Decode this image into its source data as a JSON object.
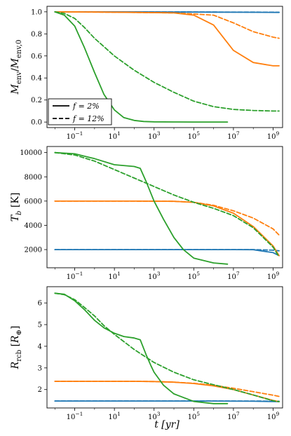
{
  "figure": {
    "xlabel": "t [yr]",
    "legend": {
      "entries": [
        {
          "label": "f = 2%",
          "style": "solid"
        },
        {
          "label": "f = 12%",
          "style": "dashed"
        }
      ],
      "placement": "lower-left of top panel"
    },
    "colors": {
      "blue": "#1f77b4",
      "orange": "#ff7f0e",
      "green": "#2ca02c"
    }
  },
  "chart_data": [
    {
      "type": "line",
      "ylabel": "M_env/M_env,0",
      "xscale": "log",
      "xlim": [
        0.004,
        3000000000
      ],
      "ylim": [
        -0.05,
        1.05
      ],
      "xticks": [
        "10^-1",
        "10^1",
        "10^3",
        "10^5",
        "10^7",
        "10^9"
      ],
      "yticks": [
        "0.0",
        "0.2",
        "0.4",
        "0.6",
        "0.8",
        "1.0"
      ],
      "series": [
        {
          "color": "blue",
          "style": "solid",
          "x": [
            0.01,
            1,
            100,
            10000,
            1000000,
            100000000,
            2000000000
          ],
          "y": [
            1.0,
            1.0,
            1.0,
            0.998,
            0.997,
            0.996,
            0.995
          ]
        },
        {
          "color": "blue",
          "style": "dashed",
          "x": [
            0.01,
            1,
            100,
            10000,
            1000000,
            100000000,
            2000000000
          ],
          "y": [
            1.0,
            1.0,
            1.0,
            0.999,
            0.998,
            0.997,
            0.996
          ]
        },
        {
          "color": "orange",
          "style": "solid",
          "x": [
            0.01,
            1,
            100,
            10000,
            100000,
            1000000,
            10000000,
            100000000,
            1000000000,
            2000000000
          ],
          "y": [
            1.0,
            0.998,
            0.995,
            0.99,
            0.97,
            0.88,
            0.65,
            0.54,
            0.51,
            0.51
          ]
        },
        {
          "color": "orange",
          "style": "dashed",
          "x": [
            0.01,
            1,
            100,
            10000,
            1000000,
            10000000,
            100000000,
            1000000000,
            2000000000
          ],
          "y": [
            1.0,
            0.998,
            0.995,
            0.99,
            0.97,
            0.9,
            0.82,
            0.77,
            0.76
          ]
        },
        {
          "color": "green",
          "style": "solid",
          "x": [
            0.01,
            0.03,
            0.1,
            0.3,
            1,
            3,
            10,
            30,
            100,
            300,
            1000,
            10000,
            100000,
            5000000
          ],
          "y": [
            1.0,
            0.97,
            0.87,
            0.68,
            0.45,
            0.25,
            0.11,
            0.04,
            0.015,
            0.005,
            0.002,
            0.001,
            0.0,
            0.0
          ]
        },
        {
          "color": "green",
          "style": "dashed",
          "x": [
            0.01,
            0.03,
            0.1,
            0.3,
            1,
            10,
            100,
            1000,
            10000,
            100000,
            1000000,
            10000000,
            100000000,
            1000000000,
            2000000000
          ],
          "y": [
            1.0,
            0.985,
            0.94,
            0.86,
            0.76,
            0.6,
            0.47,
            0.36,
            0.27,
            0.19,
            0.14,
            0.115,
            0.105,
            0.1,
            0.1
          ]
        }
      ]
    },
    {
      "type": "line",
      "ylabel": "T_b [K]",
      "xscale": "log",
      "xlim": [
        0.004,
        3000000000
      ],
      "ylim": [
        500,
        10500
      ],
      "xticks": [
        "10^-1",
        "10^1",
        "10^3",
        "10^5",
        "10^7",
        "10^9"
      ],
      "yticks": [
        "2000",
        "4000",
        "6000",
        "8000",
        "10000"
      ],
      "series": [
        {
          "color": "blue",
          "style": "solid",
          "x": [
            0.01,
            1,
            100,
            10000,
            1000000,
            10000000,
            100000000,
            1000000000,
            2000000000
          ],
          "y": [
            2000,
            2000,
            2000,
            2000,
            2000,
            2000,
            1990,
            1750,
            1500
          ]
        },
        {
          "color": "blue",
          "style": "dashed",
          "x": [
            0.01,
            1,
            100,
            10000,
            1000000,
            10000000,
            100000000,
            1000000000,
            2000000000
          ],
          "y": [
            2000,
            2000,
            2000,
            2000,
            2000,
            2000,
            2000,
            1950,
            1900
          ]
        },
        {
          "color": "orange",
          "style": "solid",
          "x": [
            0.01,
            1,
            100,
            10000,
            100000,
            1000000,
            10000000,
            100000000,
            1000000000,
            2000000000
          ],
          "y": [
            6000,
            6000,
            6000,
            5980,
            5900,
            5600,
            5000,
            3900,
            2300,
            1500
          ]
        },
        {
          "color": "orange",
          "style": "dashed",
          "x": [
            0.01,
            1,
            100,
            10000,
            100000,
            1000000,
            10000000,
            100000000,
            1000000000,
            2000000000
          ],
          "y": [
            6000,
            6000,
            6000,
            5980,
            5900,
            5650,
            5200,
            4600,
            3700,
            3200
          ]
        },
        {
          "color": "green",
          "style": "solid",
          "x": [
            0.01,
            0.1,
            1,
            10,
            100,
            200,
            400,
            1000,
            3000,
            10000,
            30000,
            100000,
            1000000,
            5000000
          ],
          "y": [
            10000,
            9900,
            9500,
            9000,
            8850,
            8700,
            7600,
            6000,
            4500,
            3000,
            2000,
            1300,
            900,
            800
          ]
        },
        {
          "color": "green",
          "style": "dashed",
          "x": [
            0.01,
            0.1,
            1,
            10,
            100,
            1000,
            10000,
            100000,
            1000000,
            10000000,
            100000000,
            1000000000,
            2000000000
          ],
          "y": [
            10000,
            9800,
            9300,
            8600,
            7900,
            7200,
            6500,
            5900,
            5400,
            4800,
            3800,
            2200,
            1400
          ]
        }
      ]
    },
    {
      "type": "line",
      "ylabel": "R_rcb [R_⊕]",
      "xscale": "log",
      "xlim": [
        0.004,
        3000000000
      ],
      "ylim": [
        1.15,
        6.75
      ],
      "xticks": [
        "10^-1",
        "10^1",
        "10^3",
        "10^5",
        "10^7",
        "10^9"
      ],
      "yticks": [
        "2",
        "3",
        "4",
        "5",
        "6"
      ],
      "series": [
        {
          "color": "blue",
          "style": "solid",
          "x": [
            0.01,
            1,
            100,
            10000,
            1000000,
            100000000,
            2000000000
          ],
          "y": [
            1.47,
            1.47,
            1.47,
            1.47,
            1.47,
            1.46,
            1.44
          ]
        },
        {
          "color": "blue",
          "style": "dashed",
          "x": [
            0.01,
            1,
            100,
            10000,
            1000000,
            100000000,
            2000000000
          ],
          "y": [
            1.47,
            1.47,
            1.47,
            1.47,
            1.47,
            1.47,
            1.46
          ]
        },
        {
          "color": "orange",
          "style": "solid",
          "x": [
            0.01,
            1,
            100,
            1000,
            10000,
            100000,
            1000000,
            10000000,
            100000000,
            1000000000,
            2000000000
          ],
          "y": [
            2.38,
            2.38,
            2.38,
            2.37,
            2.34,
            2.28,
            2.17,
            2.0,
            1.75,
            1.5,
            1.44
          ]
        },
        {
          "color": "orange",
          "style": "dashed",
          "x": [
            0.01,
            1,
            100,
            1000,
            10000,
            100000,
            1000000,
            10000000,
            100000000,
            1000000000,
            2000000000
          ],
          "y": [
            2.38,
            2.38,
            2.38,
            2.37,
            2.34,
            2.29,
            2.2,
            2.06,
            1.9,
            1.74,
            1.68
          ]
        },
        {
          "color": "green",
          "style": "solid",
          "x": [
            0.01,
            0.03,
            0.1,
            0.3,
            1,
            3,
            10,
            30,
            100,
            200,
            400,
            700,
            1000,
            3000,
            10000,
            100000,
            1000000,
            5000000
          ],
          "y": [
            6.45,
            6.4,
            6.1,
            5.7,
            5.2,
            4.85,
            4.6,
            4.45,
            4.38,
            4.3,
            3.6,
            3.1,
            2.8,
            2.2,
            1.8,
            1.45,
            1.35,
            1.35
          ]
        },
        {
          "color": "green",
          "style": "dashed",
          "x": [
            0.01,
            0.03,
            0.1,
            0.3,
            1,
            3,
            10,
            100,
            1000,
            10000,
            100000,
            1000000,
            10000000,
            100000000,
            1000000000,
            2000000000
          ],
          "y": [
            6.45,
            6.38,
            6.15,
            5.8,
            5.4,
            4.95,
            4.55,
            3.85,
            3.25,
            2.8,
            2.45,
            2.22,
            2.0,
            1.75,
            1.48,
            1.44
          ]
        }
      ]
    }
  ]
}
